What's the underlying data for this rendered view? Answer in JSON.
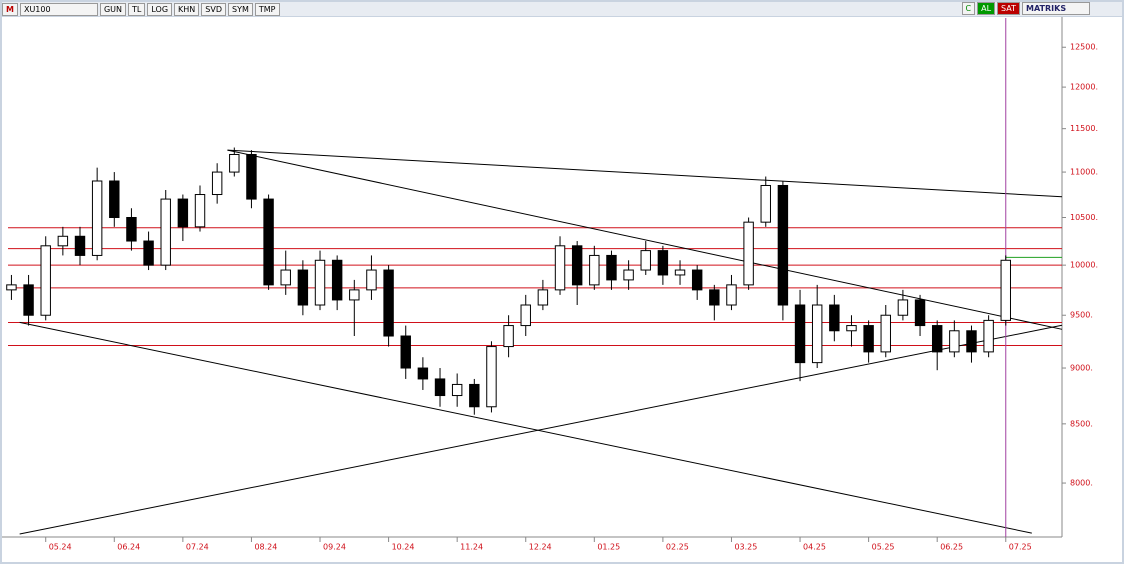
{
  "toolbar": {
    "logo": "M",
    "symbol": "XU100",
    "buttons": [
      "GUN",
      "TL",
      "LOG",
      "KHN",
      "SVD",
      "SYM",
      "TMP"
    ],
    "right": [
      "C",
      "AL",
      "SAT",
      "MATRIKS"
    ]
  },
  "chart_data": {
    "type": "candlestick",
    "log_scale": true,
    "up_color": "#ffffff",
    "down_color": "#000000",
    "axis_color": "#d0101a",
    "x": [
      4.5,
      4.75,
      5,
      5.25,
      5.5,
      5.75,
      6,
      6.25,
      6.5,
      6.75,
      7,
      7.25,
      7.5,
      7.75,
      8,
      8.25,
      8.5,
      8.75,
      9,
      9.25,
      9.5,
      9.75,
      10,
      10.25,
      10.5,
      10.75,
      11,
      11.25,
      11.5,
      11.75,
      12,
      12.25,
      12.5,
      12.75,
      13,
      13.25,
      13.5,
      13.75,
      14,
      14.25,
      14.5,
      14.75,
      15,
      15.25,
      15.5,
      15.75,
      16,
      16.25,
      16.5,
      16.75,
      17,
      17.25,
      17.5,
      17.75,
      18,
      18.25,
      18.5,
      18.75,
      19
    ],
    "open": [
      9750,
      9800,
      9500,
      10200,
      10300,
      10100,
      10900,
      10500,
      10250,
      10000,
      10700,
      10400,
      10750,
      11000,
      11200,
      10700,
      9800,
      9950,
      9600,
      10050,
      9650,
      9750,
      9950,
      9300,
      9000,
      8900,
      8750,
      8850,
      8650,
      9200,
      9400,
      9600,
      9750,
      10200,
      9800,
      10100,
      9850,
      9950,
      10150,
      9900,
      9950,
      9750,
      9600,
      9800,
      10450,
      10850,
      9600,
      9050,
      9600,
      9350,
      9400,
      9150,
      9500,
      9650,
      9400,
      9150,
      9350,
      9150,
      9450
    ],
    "high": [
      9900,
      9900,
      10300,
      10400,
      10400,
      11050,
      11000,
      10600,
      10350,
      10800,
      10750,
      10850,
      11100,
      11280,
      11250,
      10750,
      10150,
      10050,
      10150,
      10100,
      9850,
      10100,
      10000,
      9400,
      9100,
      9000,
      8950,
      8900,
      9250,
      9500,
      9700,
      9850,
      10300,
      10250,
      10200,
      10150,
      10050,
      10250,
      10200,
      10050,
      10000,
      9800,
      9900,
      10500,
      10950,
      10900,
      9750,
      9800,
      9700,
      9500,
      9450,
      9600,
      9750,
      9700,
      9450,
      9450,
      9400,
      9500,
      10100
    ],
    "low": [
      9650,
      9400,
      9450,
      10100,
      10000,
      10050,
      10400,
      10150,
      9950,
      9950,
      10250,
      10350,
      10650,
      10950,
      10600,
      9750,
      9700,
      9500,
      9550,
      9550,
      9300,
      9650,
      9200,
      8900,
      8800,
      8650,
      8650,
      8580,
      8600,
      9100,
      9300,
      9550,
      9700,
      9600,
      9750,
      9750,
      9750,
      9900,
      9800,
      9800,
      9650,
      9450,
      9550,
      9750,
      10400,
      9450,
      8880,
      9000,
      9250,
      9200,
      9050,
      9100,
      9450,
      9300,
      8980,
      9100,
      9050,
      9100,
      9400
    ],
    "close": [
      9800,
      9500,
      10200,
      10300,
      10100,
      10900,
      10500,
      10250,
      10000,
      10700,
      10400,
      10750,
      11000,
      11200,
      10700,
      9800,
      9950,
      9600,
      10050,
      9650,
      9750,
      9950,
      9300,
      9000,
      8900,
      8750,
      8850,
      8650,
      9200,
      9400,
      9600,
      9750,
      10200,
      9800,
      10100,
      9850,
      9950,
      10150,
      9900,
      9950,
      9750,
      9600,
      9800,
      10450,
      10850,
      9600,
      9050,
      9600,
      9350,
      9400,
      9150,
      9500,
      9650,
      9400,
      9150,
      9350,
      9150,
      9450,
      10050
    ],
    "xlim": [
      4.45,
      19.82
    ],
    "ylim": [
      7570,
      12880
    ],
    "xticks": [
      {
        "value": 5,
        "label": "05.24"
      },
      {
        "value": 6,
        "label": "06.24"
      },
      {
        "value": 7,
        "label": "07.24"
      },
      {
        "value": 8,
        "label": "08.24"
      },
      {
        "value": 9,
        "label": "09.24"
      },
      {
        "value": 10,
        "label": "10.24"
      },
      {
        "value": 11,
        "label": "11.24"
      },
      {
        "value": 12,
        "label": "12.24"
      },
      {
        "value": 13,
        "label": "01.25"
      },
      {
        "value": 14,
        "label": "02.25"
      },
      {
        "value": 15,
        "label": "03.25"
      },
      {
        "value": 16,
        "label": "04.25"
      },
      {
        "value": 17,
        "label": "05.25"
      },
      {
        "value": 18,
        "label": "06.25"
      },
      {
        "value": 19,
        "label": "07.25"
      }
    ],
    "yticks": [
      {
        "value": 8000,
        "label": "8000."
      },
      {
        "value": 8500,
        "label": "8500."
      },
      {
        "value": 9000,
        "label": "9000."
      },
      {
        "value": 9500,
        "label": "9500."
      },
      {
        "value": 10000,
        "label": "10000."
      },
      {
        "value": 10500,
        "label": "10500."
      },
      {
        "value": 11000,
        "label": "11000."
      },
      {
        "value": 11500,
        "label": "11500."
      },
      {
        "value": 12000,
        "label": "12000."
      },
      {
        "value": 12500,
        "label": "12500."
      }
    ],
    "levels": [
      10390,
      10170,
      10000,
      9770,
      9430,
      9210
    ],
    "level_color": "#d0101a",
    "trendlines": [
      {
        "x": [
          7.65,
          19.82
        ],
        "y": [
          11250,
          10725
        ]
      },
      {
        "x": [
          7.65,
          19.82
        ],
        "y": [
          11250,
          9364
        ]
      },
      {
        "x": [
          4.62,
          19.38
        ],
        "y": [
          9431,
          7600
        ]
      },
      {
        "x": [
          4.62,
          19.82
        ],
        "y": [
          7593,
          9403
        ]
      }
    ],
    "marker_x": 19.0,
    "marker_color": "#a040a0",
    "segment": {
      "x": [
        19.0,
        19.82
      ],
      "y": [
        10080,
        10080
      ],
      "color": "#20a020"
    }
  }
}
